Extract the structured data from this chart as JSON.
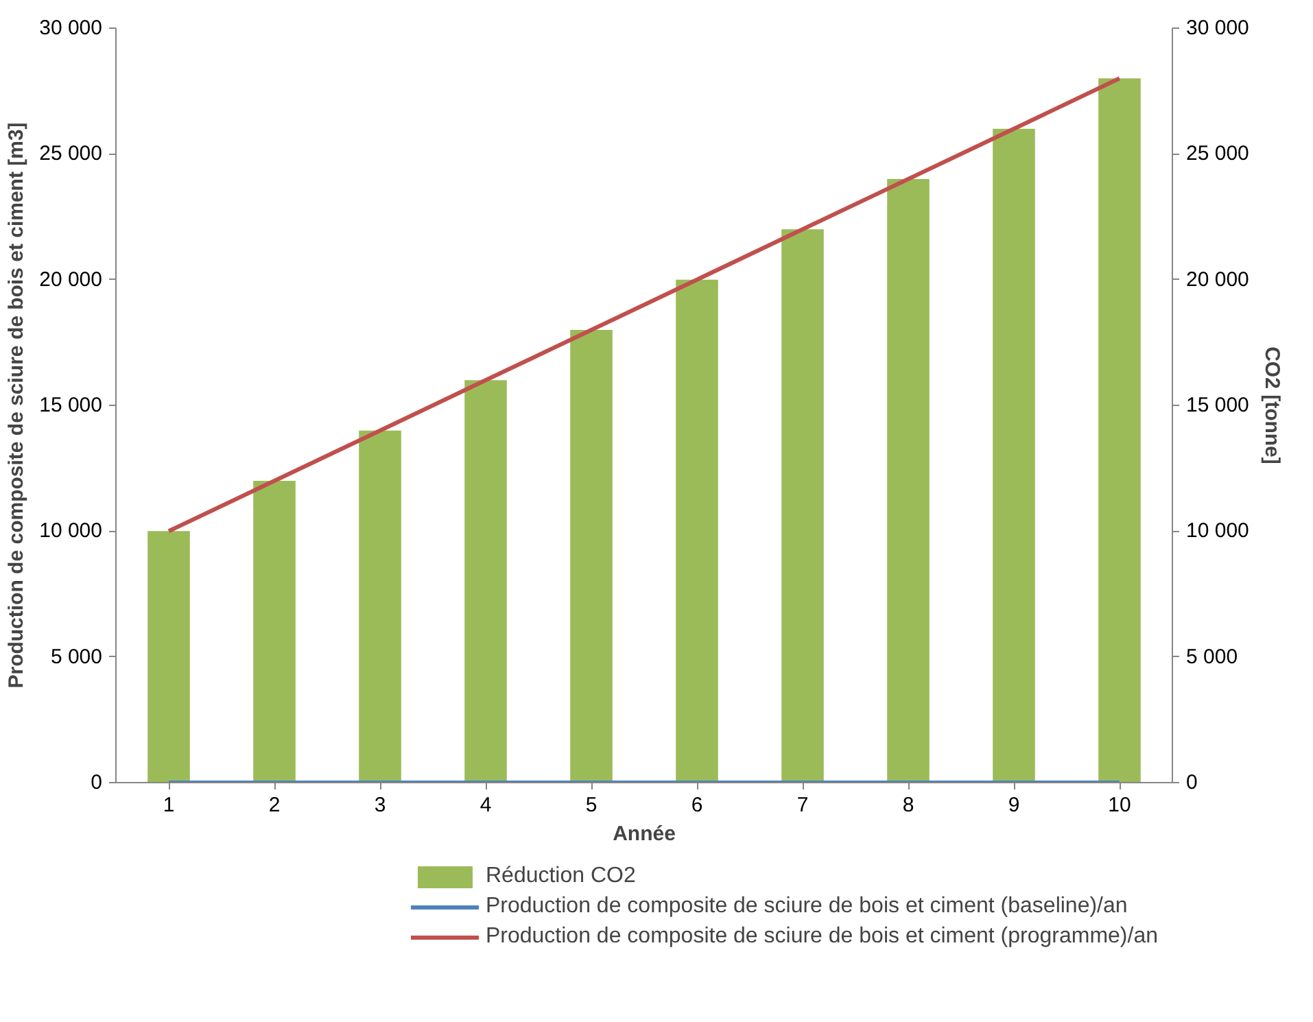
{
  "chart_data": {
    "type": "bar",
    "xlabel": "Année",
    "ylabel": "Production de composite de sciure de bois et ciment [m3]",
    "y2label": "CO2 [tonne]",
    "categories": [
      "1",
      "2",
      "3",
      "4",
      "5",
      "6",
      "7",
      "8",
      "9",
      "10"
    ],
    "series": [
      {
        "name": "Réduction CO2",
        "color": "#9bbb59",
        "values": [
          10000,
          12000,
          14000,
          16000,
          18000,
          20000,
          22000,
          24000,
          26000,
          28000
        ]
      },
      {
        "name": "Production de composite de sciure de bois et ciment (baseline)/an",
        "color": "#4f81bd",
        "type": "line",
        "values": [
          0,
          0,
          0,
          0,
          0,
          0,
          0,
          0,
          0,
          0
        ]
      },
      {
        "name": "Production de composite de sciure de bois et ciment (programme)/an",
        "color": "#c0504d",
        "type": "line",
        "values": [
          10000,
          12000,
          14000,
          16000,
          18000,
          20000,
          22000,
          24000,
          26000,
          28000
        ]
      }
    ],
    "ylim": [
      0,
      30000
    ],
    "yticks": [
      {
        "value": 0,
        "label": "0"
      },
      {
        "value": 5000,
        "label": "5 000"
      },
      {
        "value": 10000,
        "label": "10 000"
      },
      {
        "value": 15000,
        "label": "15 000"
      },
      {
        "value": 20000,
        "label": "20 000"
      },
      {
        "value": 25000,
        "label": "25 000"
      },
      {
        "value": 30000,
        "label": "30 000"
      }
    ],
    "y2lim": [
      0,
      30000
    ],
    "y2ticks": [
      {
        "value": 0,
        "label": "0"
      },
      {
        "value": 5000,
        "label": "5 000"
      },
      {
        "value": 10000,
        "label": "10 000"
      },
      {
        "value": 15000,
        "label": "15 000"
      },
      {
        "value": 20000,
        "label": "20 000"
      },
      {
        "value": 25000,
        "label": "25 000"
      },
      {
        "value": 30000,
        "label": "30 000"
      }
    ],
    "grid": false,
    "legend": "bottom",
    "marker": "none",
    "line_style": "solid"
  }
}
